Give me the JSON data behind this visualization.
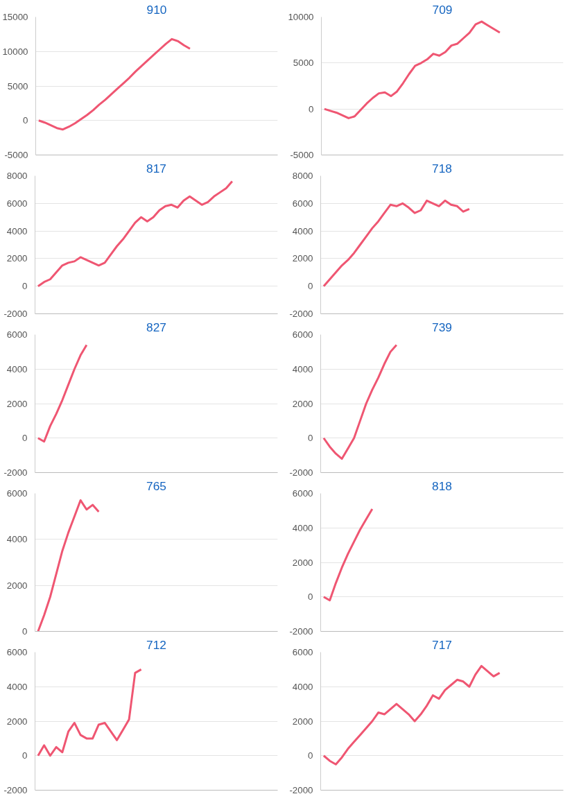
{
  "chart_data": [
    {
      "type": "line",
      "title": "910",
      "categories": [
        null,
        null,
        null,
        null,
        null,
        null,
        null,
        null,
        null,
        null,
        null,
        null,
        null,
        null,
        null,
        null,
        null,
        null,
        null,
        null,
        null,
        null,
        null,
        null,
        null,
        null,
        null,
        null,
        null,
        null,
        null,
        null,
        null,
        null,
        null,
        null,
        null,
        null,
        null,
        null
      ],
      "series": [
        {
          "color": "#ef5672",
          "values": [
            0,
            -300,
            -700,
            -1100,
            -1300,
            -900,
            -400,
            200,
            800,
            1500,
            2300,
            3000,
            3800,
            4600,
            5400,
            6200,
            7100,
            7900,
            8700,
            9500,
            10300,
            11100,
            11800,
            11500,
            10900,
            10400,
            null,
            null,
            null,
            null,
            null,
            null,
            null,
            null,
            null,
            null,
            null,
            null,
            null,
            null
          ]
        }
      ],
      "ylim": [
        -5000,
        15000
      ],
      "yticks": [
        -5000,
        0,
        5000,
        10000,
        15000
      ],
      "grid": "y",
      "tick_labels": "y",
      "line_style": "solid"
    },
    {
      "type": "line",
      "title": "709",
      "categories": [
        null,
        null,
        null,
        null,
        null,
        null,
        null,
        null,
        null,
        null,
        null,
        null,
        null,
        null,
        null,
        null,
        null,
        null,
        null,
        null,
        null,
        null,
        null,
        null,
        null,
        null,
        null,
        null,
        null,
        null,
        null,
        null,
        null,
        null,
        null,
        null,
        null,
        null,
        null,
        null
      ],
      "series": [
        {
          "color": "#ef5672",
          "values": [
            0,
            -200,
            -400,
            -700,
            -1000,
            -800,
            -100,
            600,
            1200,
            1700,
            1800,
            1400,
            1900,
            2800,
            3800,
            4700,
            5000,
            5400,
            6000,
            5800,
            6200,
            6900,
            7100,
            7700,
            8300,
            9200,
            9500,
            9100,
            8700,
            8300,
            null,
            null,
            null,
            null,
            null,
            null,
            null,
            null,
            null,
            null
          ]
        }
      ],
      "ylim": [
        -5000,
        10000
      ],
      "yticks": [
        -5000,
        0,
        5000,
        10000
      ],
      "grid": "y",
      "tick_labels": "y",
      "line_style": "solid"
    },
    {
      "type": "line",
      "title": "817",
      "categories": [
        null,
        null,
        null,
        null,
        null,
        null,
        null,
        null,
        null,
        null,
        null,
        null,
        null,
        null,
        null,
        null,
        null,
        null,
        null,
        null,
        null,
        null,
        null,
        null,
        null,
        null,
        null,
        null,
        null,
        null,
        null,
        null,
        null,
        null,
        null,
        null,
        null,
        null,
        null,
        null
      ],
      "series": [
        {
          "color": "#ef5672",
          "values": [
            0,
            300,
            500,
            1000,
            1500,
            1700,
            1800,
            2100,
            1900,
            1700,
            1500,
            1700,
            2300,
            2900,
            3400,
            4000,
            4600,
            5000,
            4700,
            5000,
            5500,
            5800,
            5900,
            5700,
            6200,
            6500,
            6200,
            5900,
            6100,
            6500,
            6800,
            7100,
            7600,
            null,
            null,
            null,
            null,
            null,
            null,
            null
          ]
        }
      ],
      "ylim": [
        -2000,
        8000
      ],
      "yticks": [
        -2000,
        0,
        2000,
        4000,
        6000,
        8000
      ],
      "grid": "y",
      "tick_labels": "y",
      "line_style": "solid"
    },
    {
      "type": "line",
      "title": "718",
      "categories": [
        null,
        null,
        null,
        null,
        null,
        null,
        null,
        null,
        null,
        null,
        null,
        null,
        null,
        null,
        null,
        null,
        null,
        null,
        null,
        null,
        null,
        null,
        null,
        null,
        null,
        null,
        null,
        null,
        null,
        null,
        null,
        null,
        null,
        null,
        null,
        null,
        null,
        null,
        null,
        null
      ],
      "series": [
        {
          "color": "#ef5672",
          "values": [
            0,
            500,
            1000,
            1500,
            1900,
            2400,
            3000,
            3600,
            4200,
            4700,
            5300,
            5900,
            5800,
            6000,
            5700,
            5300,
            5500,
            6200,
            6000,
            5800,
            6200,
            5900,
            5800,
            5400,
            5600,
            null,
            null,
            null,
            null,
            null,
            null,
            null,
            null,
            null,
            null,
            null,
            null,
            null,
            null,
            null
          ]
        }
      ],
      "ylim": [
        -2000,
        8000
      ],
      "yticks": [
        -2000,
        0,
        2000,
        4000,
        6000,
        8000
      ],
      "grid": "y",
      "tick_labels": "y",
      "line_style": "solid"
    },
    {
      "type": "line",
      "title": "827",
      "categories": [
        null,
        null,
        null,
        null,
        null,
        null,
        null,
        null,
        null,
        null,
        null,
        null,
        null,
        null,
        null,
        null,
        null,
        null,
        null,
        null,
        null,
        null,
        null,
        null,
        null,
        null,
        null,
        null,
        null,
        null,
        null,
        null,
        null,
        null,
        null,
        null,
        null,
        null,
        null,
        null
      ],
      "series": [
        {
          "color": "#ef5672",
          "values": [
            0,
            -200,
            700,
            1400,
            2200,
            3100,
            4000,
            4800,
            5400,
            null,
            null,
            null,
            null,
            null,
            null,
            null,
            null,
            null,
            null,
            null,
            null,
            null,
            null,
            null,
            null,
            null,
            null,
            null,
            null,
            null,
            null,
            null,
            null,
            null,
            null,
            null,
            null,
            null,
            null,
            null
          ]
        }
      ],
      "ylim": [
        -2000,
        6000
      ],
      "yticks": [
        -2000,
        0,
        2000,
        4000,
        6000
      ],
      "grid": "y",
      "tick_labels": "y",
      "line_style": "solid"
    },
    {
      "type": "line",
      "title": "739",
      "categories": [
        null,
        null,
        null,
        null,
        null,
        null,
        null,
        null,
        null,
        null,
        null,
        null,
        null,
        null,
        null,
        null,
        null,
        null,
        null,
        null,
        null,
        null,
        null,
        null,
        null,
        null,
        null,
        null,
        null,
        null,
        null,
        null,
        null,
        null,
        null,
        null,
        null,
        null,
        null,
        null
      ],
      "series": [
        {
          "color": "#ef5672",
          "values": [
            0,
            -500,
            -900,
            -1200,
            -600,
            0,
            1000,
            2000,
            2800,
            3500,
            4300,
            5000,
            5400,
            null,
            null,
            null,
            null,
            null,
            null,
            null,
            null,
            null,
            null,
            null,
            null,
            null,
            null,
            null,
            null,
            null,
            null,
            null,
            null,
            null,
            null,
            null,
            null,
            null,
            null,
            null
          ]
        }
      ],
      "ylim": [
        -2000,
        6000
      ],
      "yticks": [
        -2000,
        0,
        2000,
        4000,
        6000
      ],
      "grid": "y",
      "tick_labels": "y",
      "line_style": "solid"
    },
    {
      "type": "line",
      "title": "765",
      "categories": [
        null,
        null,
        null,
        null,
        null,
        null,
        null,
        null,
        null,
        null,
        null,
        null,
        null,
        null,
        null,
        null,
        null,
        null,
        null,
        null,
        null,
        null,
        null,
        null,
        null,
        null,
        null,
        null,
        null,
        null,
        null,
        null,
        null,
        null,
        null,
        null,
        null,
        null,
        null,
        null
      ],
      "series": [
        {
          "color": "#ef5672",
          "values": [
            0,
            700,
            1500,
            2500,
            3500,
            4300,
            5000,
            5700,
            5300,
            5500,
            5200,
            null,
            null,
            null,
            null,
            null,
            null,
            null,
            null,
            null,
            null,
            null,
            null,
            null,
            null,
            null,
            null,
            null,
            null,
            null,
            null,
            null,
            null,
            null,
            null,
            null,
            null,
            null,
            null,
            null
          ]
        }
      ],
      "ylim": [
        0,
        6000
      ],
      "yticks": [
        0,
        2000,
        4000,
        6000
      ],
      "grid": "y",
      "tick_labels": "y",
      "line_style": "solid"
    },
    {
      "type": "line",
      "title": "818",
      "categories": [
        null,
        null,
        null,
        null,
        null,
        null,
        null,
        null,
        null,
        null,
        null,
        null,
        null,
        null,
        null,
        null,
        null,
        null,
        null,
        null,
        null,
        null,
        null,
        null,
        null,
        null,
        null,
        null,
        null,
        null,
        null,
        null,
        null,
        null,
        null,
        null,
        null,
        null,
        null,
        null
      ],
      "series": [
        {
          "color": "#ef5672",
          "values": [
            0,
            -200,
            800,
            1700,
            2500,
            3200,
            3900,
            4500,
            5100,
            null,
            null,
            null,
            null,
            null,
            null,
            null,
            null,
            null,
            null,
            null,
            null,
            null,
            null,
            null,
            null,
            null,
            null,
            null,
            null,
            null,
            null,
            null,
            null,
            null,
            null,
            null,
            null,
            null,
            null,
            null
          ]
        }
      ],
      "ylim": [
        -2000,
        6000
      ],
      "yticks": [
        -2000,
        0,
        2000,
        4000,
        6000
      ],
      "grid": "y",
      "tick_labels": "y",
      "line_style": "solid"
    },
    {
      "type": "line",
      "title": "712",
      "categories": [
        null,
        null,
        null,
        null,
        null,
        null,
        null,
        null,
        null,
        null,
        null,
        null,
        null,
        null,
        null,
        null,
        null,
        null,
        null,
        null,
        null,
        null,
        null,
        null,
        null,
        null,
        null,
        null,
        null,
        null,
        null,
        null,
        null,
        null,
        null,
        null,
        null,
        null,
        null,
        null
      ],
      "series": [
        {
          "color": "#ef5672",
          "values": [
            0,
            600,
            0,
            500,
            200,
            1400,
            1900,
            1200,
            1000,
            1000,
            1800,
            1900,
            1400,
            900,
            1500,
            2100,
            4800,
            5000,
            null,
            null,
            null,
            null,
            null,
            null,
            null,
            null,
            null,
            null,
            null,
            null,
            null,
            null,
            null,
            null,
            null,
            null,
            null,
            null,
            null,
            null
          ]
        }
      ],
      "ylim": [
        -2000,
        6000
      ],
      "yticks": [
        -2000,
        0,
        2000,
        4000,
        6000
      ],
      "grid": "y",
      "tick_labels": "y",
      "line_style": "solid"
    },
    {
      "type": "line",
      "title": "717",
      "categories": [
        null,
        null,
        null,
        null,
        null,
        null,
        null,
        null,
        null,
        null,
        null,
        null,
        null,
        null,
        null,
        null,
        null,
        null,
        null,
        null,
        null,
        null,
        null,
        null,
        null,
        null,
        null,
        null,
        null,
        null,
        null,
        null,
        null,
        null,
        null,
        null,
        null,
        null,
        null,
        null
      ],
      "series": [
        {
          "color": "#ef5672",
          "values": [
            0,
            -300,
            -500,
            -100,
            400,
            800,
            1200,
            1600,
            2000,
            2500,
            2400,
            2700,
            3000,
            2700,
            2400,
            2000,
            2400,
            2900,
            3500,
            3300,
            3800,
            4100,
            4400,
            4300,
            4000,
            4700,
            5200,
            4900,
            4600,
            4800,
            null,
            null,
            null,
            null,
            null,
            null,
            null,
            null,
            null,
            null
          ]
        }
      ],
      "ylim": [
        -2000,
        6000
      ],
      "yticks": [
        -2000,
        0,
        2000,
        4000,
        6000
      ],
      "grid": "y",
      "tick_labels": "y",
      "line_style": "solid"
    }
  ]
}
